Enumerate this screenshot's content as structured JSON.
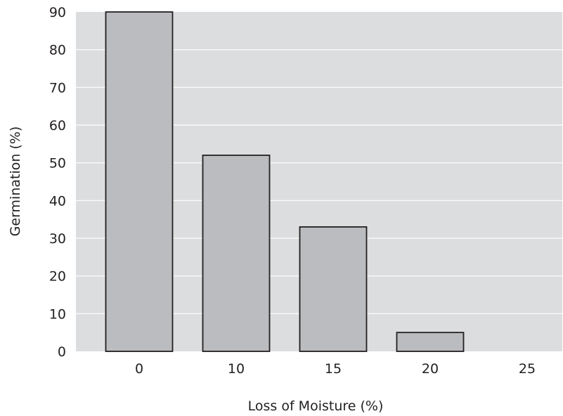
{
  "chart_data": {
    "type": "bar",
    "title": "",
    "xlabel": "Loss of Moisture (%)",
    "ylabel": "Germination (%)",
    "categories": [
      "0",
      "10",
      "15",
      "20",
      "25"
    ],
    "values": [
      90,
      52,
      33,
      5,
      0
    ],
    "ylim": [
      0,
      90
    ],
    "yticks": [
      0,
      10,
      20,
      30,
      40,
      50,
      60,
      70,
      80,
      90
    ],
    "grid": true,
    "legend": "none",
    "colors": {
      "plot_background": "#dcdddf",
      "bar_fill": "#bbbcbf",
      "bar_stroke": "#231f20",
      "gridline": "#ffffff",
      "text": "#231f20"
    }
  }
}
